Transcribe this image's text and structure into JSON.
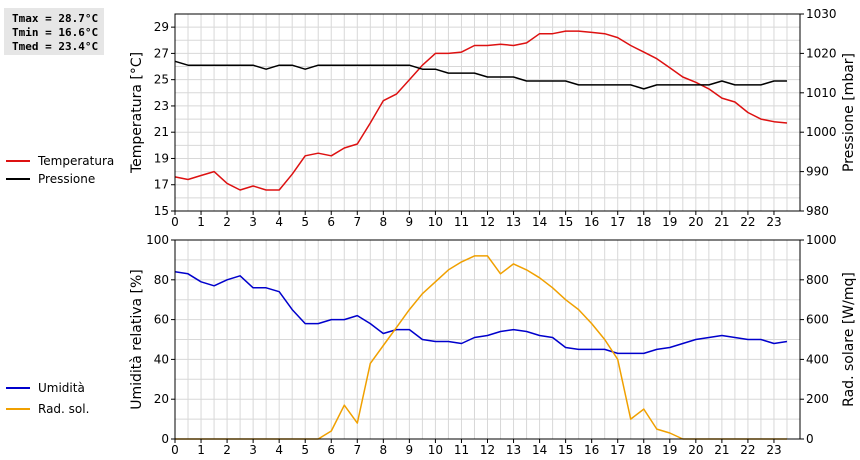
{
  "stats": {
    "lines": [
      "Tmax = 28.7°C",
      "Tmin = 16.6°C",
      "Tmed = 23.4°C"
    ]
  },
  "colors": {
    "temperature": "#dd1111",
    "pressure": "#000000",
    "humidity": "#0000cc",
    "radiation": "#f0a000",
    "grid": "#d8d8d8"
  },
  "chart_data": [
    {
      "type": "line",
      "x_ticks": [
        0,
        1,
        2,
        3,
        4,
        5,
        6,
        7,
        8,
        9,
        10,
        11,
        12,
        13,
        14,
        15,
        16,
        17,
        18,
        19,
        20,
        21,
        22,
        23
      ],
      "xlim": [
        0,
        24
      ],
      "ylabel_left": "Temperatura [°C]",
      "ylabel_right": "Pressione [mbar]",
      "ylim_left": [
        15,
        30
      ],
      "ylim_right": [
        980,
        1030
      ],
      "yticks_left": [
        15,
        17,
        19,
        21,
        23,
        25,
        27,
        29
      ],
      "yticks_right": [
        980,
        990,
        1000,
        1010,
        1020,
        1030
      ],
      "grid": true,
      "legend_position": "left",
      "series": [
        {
          "name": "Temperatura",
          "axis": "left",
          "x": [
            0,
            0.5,
            1,
            1.5,
            2,
            2.5,
            3,
            3.5,
            4,
            4.5,
            5,
            5.5,
            6,
            6.5,
            7,
            7.5,
            8,
            8.5,
            9,
            9.5,
            10,
            10.5,
            11,
            11.5,
            12,
            12.5,
            13,
            13.5,
            14,
            14.5,
            15,
            15.5,
            16,
            16.5,
            17,
            17.5,
            18,
            18.5,
            19,
            19.5,
            20,
            20.5,
            21,
            21.5,
            22,
            22.5,
            23,
            23.5
          ],
          "y": [
            17.6,
            17.4,
            17.7,
            18.0,
            17.1,
            16.6,
            16.9,
            16.6,
            16.6,
            17.8,
            19.2,
            19.4,
            19.2,
            19.8,
            20.1,
            21.7,
            23.4,
            23.9,
            25.0,
            26.1,
            27.0,
            27.0,
            27.1,
            27.6,
            27.6,
            27.7,
            27.6,
            27.8,
            28.5,
            28.5,
            28.7,
            28.7,
            28.6,
            28.5,
            28.2,
            27.6,
            27.1,
            26.6,
            25.9,
            25.2,
            24.8,
            24.3,
            23.6,
            23.3,
            22.5,
            22.0,
            21.8,
            21.7
          ]
        },
        {
          "name": "Pressione",
          "axis": "right",
          "x": [
            0,
            0.5,
            1,
            1.5,
            2,
            2.5,
            3,
            3.5,
            4,
            4.5,
            5,
            5.5,
            6,
            6.5,
            7,
            7.5,
            8,
            8.5,
            9,
            9.5,
            10,
            10.5,
            11,
            11.5,
            12,
            12.5,
            13,
            13.5,
            14,
            14.5,
            15,
            15.5,
            16,
            16.5,
            17,
            17.5,
            18,
            18.5,
            19,
            19.5,
            20,
            20.5,
            21,
            21.5,
            22,
            22.5,
            23,
            23.5
          ],
          "y": [
            1018,
            1017,
            1017,
            1017,
            1017,
            1017,
            1017,
            1016,
            1017,
            1017,
            1016,
            1017,
            1017,
            1017,
            1017,
            1017,
            1017,
            1017,
            1017,
            1016,
            1016,
            1015,
            1015,
            1015,
            1014,
            1014,
            1014,
            1013,
            1013,
            1013,
            1013,
            1012,
            1012,
            1012,
            1012,
            1012,
            1011,
            1012,
            1012,
            1012,
            1012,
            1012,
            1013,
            1012,
            1012,
            1012,
            1013,
            1013
          ]
        }
      ]
    },
    {
      "type": "line",
      "x_ticks": [
        0,
        1,
        2,
        3,
        4,
        5,
        6,
        7,
        8,
        9,
        10,
        11,
        12,
        13,
        14,
        15,
        16,
        17,
        18,
        19,
        20,
        21,
        22,
        23
      ],
      "xlim": [
        0,
        24
      ],
      "ylabel_left": "Umidità relativa [%]",
      "ylabel_right": "Rad. solare [W/mq]",
      "ylim_left": [
        0,
        100
      ],
      "ylim_right": [
        0,
        1000
      ],
      "yticks_left": [
        0,
        20,
        40,
        60,
        80,
        100
      ],
      "yticks_right": [
        0,
        200,
        400,
        600,
        800,
        1000
      ],
      "grid": true,
      "legend_position": "left",
      "series": [
        {
          "name": "Umidità",
          "axis": "left",
          "x": [
            0,
            0.5,
            1,
            1.5,
            2,
            2.5,
            3,
            3.5,
            4,
            4.5,
            5,
            5.5,
            6,
            6.5,
            7,
            7.5,
            8,
            8.5,
            9,
            9.5,
            10,
            10.5,
            11,
            11.5,
            12,
            12.5,
            13,
            13.5,
            14,
            14.5,
            15,
            15.5,
            16,
            16.5,
            17,
            17.5,
            18,
            18.5,
            19,
            19.5,
            20,
            20.5,
            21,
            21.5,
            22,
            22.5,
            23,
            23.5
          ],
          "y": [
            84,
            83,
            79,
            77,
            80,
            82,
            76,
            76,
            74,
            65,
            58,
            58,
            60,
            60,
            62,
            58,
            53,
            55,
            55,
            50,
            49,
            49,
            48,
            51,
            52,
            54,
            55,
            54,
            52,
            51,
            46,
            45,
            45,
            45,
            43,
            43,
            43,
            45,
            46,
            48,
            50,
            51,
            52,
            51,
            50,
            50,
            48,
            49
          ]
        },
        {
          "name": "Rad. sol.",
          "axis": "right",
          "x": [
            0,
            0.5,
            1,
            1.5,
            2,
            2.5,
            3,
            3.5,
            4,
            4.5,
            5,
            5.5,
            6,
            6.5,
            7,
            7.5,
            8,
            8.5,
            9,
            9.5,
            10,
            10.5,
            11,
            11.5,
            12,
            12.5,
            13,
            13.5,
            14,
            14.5,
            15,
            15.5,
            16,
            16.5,
            17,
            17.5,
            18,
            18.5,
            19,
            19.5,
            20,
            20.5,
            21,
            21.5,
            22,
            22.5,
            23,
            23.5
          ],
          "y": [
            0,
            0,
            0,
            0,
            0,
            0,
            0,
            0,
            0,
            0,
            0,
            0,
            40,
            170,
            80,
            380,
            470,
            560,
            650,
            730,
            790,
            850,
            890,
            920,
            920,
            830,
            880,
            850,
            810,
            760,
            700,
            650,
            580,
            500,
            400,
            100,
            150,
            50,
            30,
            0,
            0,
            0,
            0,
            0,
            0,
            0,
            0,
            0
          ]
        }
      ]
    }
  ]
}
